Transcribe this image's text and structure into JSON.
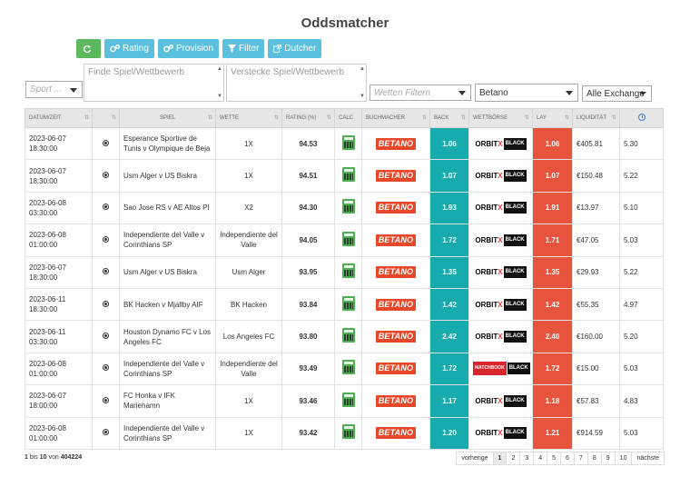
{
  "page": {
    "title": "Oddsmatcher"
  },
  "toolbar": {
    "rating_label": "Rating",
    "provision_label": "Provision",
    "filter_label": "Filter",
    "dutcher_label": "Dutcher"
  },
  "filters": {
    "sport_placeholder": "Sport ...",
    "find_placeholder": "Finde Spiel/Wettbewerb",
    "hide_placeholder": "Verstecke Spiel/Wettbewerb",
    "bet_filter_placeholder": "Wetten Filtern",
    "bookmaker_value": "Betano",
    "exchange_value": "Alle Exchange"
  },
  "table": {
    "headers": [
      "Datum/Zeit",
      "",
      "Spiel",
      "Wette",
      "Rating (%)",
      "Calc",
      "Buchmacher",
      "Back",
      "Wettbörse",
      "Lay",
      "Liquidität",
      ""
    ],
    "rows": [
      {
        "date": "2023-06-07",
        "time": "18:30:00",
        "game": "Esperance Sportive de Tunis v Olympique de Beja",
        "bet": "1X",
        "rating": "94.53",
        "bookmaker": "BETANO",
        "back": "1.06",
        "exchange": "orbitx",
        "lay": "1.06",
        "liquidity": "€405.81",
        "clock": "5.30"
      },
      {
        "date": "2023-06-07",
        "time": "18:30:00",
        "game": "Usm Alger v US Biskra",
        "bet": "1X",
        "rating": "94.51",
        "bookmaker": "BETANO",
        "back": "1.07",
        "exchange": "orbitx",
        "lay": "1.07",
        "liquidity": "€150.48",
        "clock": "5.22"
      },
      {
        "date": "2023-06-08",
        "time": "03:30:00",
        "game": "Sao Jose RS v AE Altos PI",
        "bet": "X2",
        "rating": "94.30",
        "bookmaker": "BETANO",
        "back": "1.93",
        "exchange": "orbitx",
        "lay": "1.91",
        "liquidity": "€13.97",
        "clock": "5.10"
      },
      {
        "date": "2023-06-08",
        "time": "01:00:00",
        "game": "Independiente del Valle v Corinthians SP",
        "bet": "Independiente del Valle",
        "rating": "94.05",
        "bookmaker": "BETANO",
        "back": "1.72",
        "exchange": "orbitx",
        "lay": "1.71",
        "liquidity": "€47.05",
        "clock": "5.03"
      },
      {
        "date": "2023-06-07",
        "time": "18:30:00",
        "game": "Usm Alger v US Biskra",
        "bet": "Usm Alger",
        "rating": "93.95",
        "bookmaker": "BETANO",
        "back": "1.35",
        "exchange": "orbitx",
        "lay": "1.35",
        "liquidity": "€29.93",
        "clock": "5.22"
      },
      {
        "date": "2023-06-11",
        "time": "18:30:00",
        "game": "BK Hacken v Mjallby AIF",
        "bet": "BK Hacken",
        "rating": "93.84",
        "bookmaker": "BETANO",
        "back": "1.42",
        "exchange": "orbitx",
        "lay": "1.42",
        "liquidity": "€55.35",
        "clock": "4.97"
      },
      {
        "date": "2023-06-11",
        "time": "03:30:00",
        "game": "Houston Dynamo FC v Los Angeles FC",
        "bet": "Los Angeles FC",
        "rating": "93.80",
        "bookmaker": "BETANO",
        "back": "2.42",
        "exchange": "orbitx",
        "lay": "2.40",
        "liquidity": "€160.00",
        "clock": "5.20"
      },
      {
        "date": "2023-06-08",
        "time": "01:00:00",
        "game": "Independiente del Valle v Corinthians SP",
        "bet": "Independiente del Valle",
        "rating": "93.49",
        "bookmaker": "BETANO",
        "back": "1.72",
        "exchange": "matchbook",
        "lay": "1.72",
        "liquidity": "€15.00",
        "clock": "5.03"
      },
      {
        "date": "2023-06-07",
        "time": "18:00:00",
        "game": "FC Honka v IFK Mariehamn",
        "bet": "1X",
        "rating": "93.46",
        "bookmaker": "BETANO",
        "back": "1.17",
        "exchange": "orbitx",
        "lay": "1.18",
        "liquidity": "€57.83",
        "clock": "4.83"
      },
      {
        "date": "2023-06-08",
        "time": "01:00:00",
        "game": "Independiente del Valle v Corinthians SP",
        "bet": "1X",
        "rating": "93.42",
        "bookmaker": "BETANO",
        "back": "1.20",
        "exchange": "orbitx",
        "lay": "1.21",
        "liquidity": "€914.59",
        "clock": "5.03"
      }
    ]
  },
  "logos": {
    "orbitx_main": "ORBIT",
    "orbitx_x": "X",
    "orbitx_black": "BLACK",
    "matchbook": "MATCHBOOK"
  },
  "footer": {
    "from": "1",
    "to": "10",
    "total": "404224",
    "bis": "bis",
    "von": "von"
  },
  "pagination": {
    "prev": "vorherige",
    "pages": [
      "1",
      "2",
      "3",
      "4",
      "5",
      "6",
      "7",
      "8",
      "9",
      "10"
    ],
    "next": "nächste"
  },
  "colors": {
    "back": "#17abad",
    "lay": "#e8533d",
    "green": "#5cb85c",
    "blue": "#5bc0de"
  }
}
